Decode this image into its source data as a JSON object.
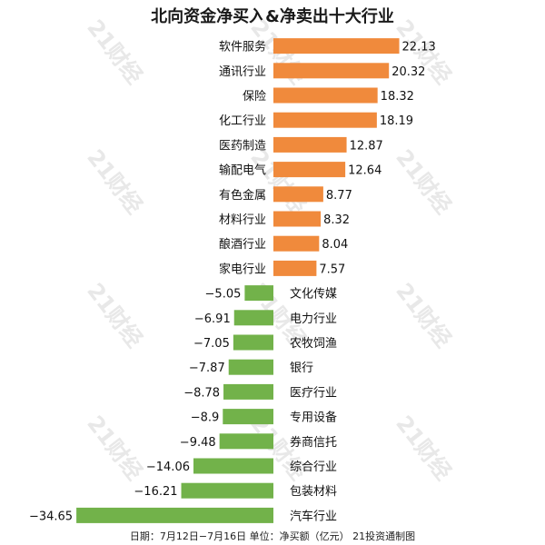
{
  "chart_data": {
    "type": "bar",
    "orientation": "horizontal",
    "title": "北向资金净买入&净卖出十大行业",
    "categories": [
      "软件服务",
      "通讯行业",
      "保险",
      "化工行业",
      "医药制造",
      "输配电气",
      "有色金属",
      "材料行业",
      "酿酒行业",
      "家电行业",
      "文化传媒",
      "电力行业",
      "农牧饲渔",
      "银行",
      "医疗行业",
      "专用设备",
      "券商信托",
      "综合行业",
      "包装材料",
      "汽车行业"
    ],
    "values": [
      22.13,
      20.32,
      18.32,
      18.19,
      12.87,
      12.64,
      8.77,
      8.32,
      8.04,
      7.57,
      -5.05,
      -6.91,
      -7.05,
      -7.87,
      -8.78,
      -8.9,
      -9.48,
      -14.06,
      -16.21,
      -34.65
    ],
    "value_labels": [
      "22.13",
      "20.32",
      "18.32",
      "18.19",
      "12.87",
      "12.64",
      "8.77",
      "8.32",
      "8.04",
      "7.57",
      "−5.05",
      "−6.91",
      "−7.05",
      "−7.87",
      "−8.78",
      "−8.9",
      "−9.48",
      "−14.06",
      "−16.21",
      "−34.65"
    ],
    "colors": {
      "positive": "#f08a3c",
      "negative": "#72b24a"
    },
    "footer": "日期：7月12日−7月16日 单位：净买额（亿元） 21投资通制图",
    "watermark": "21财经"
  }
}
